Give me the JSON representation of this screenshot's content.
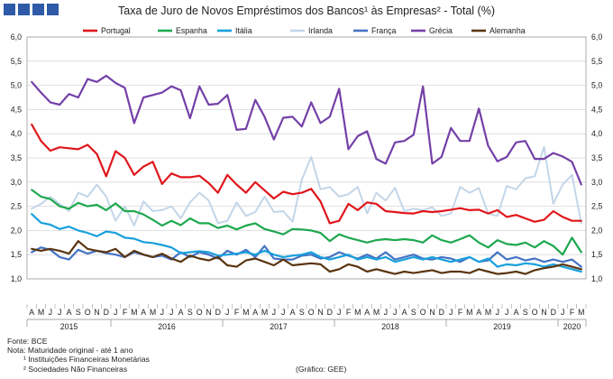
{
  "chart_data": {
    "type": "line",
    "title": "Taxa de Juro de Novos Empréstimos dos Bancos¹ às Empresas² - Total (%)",
    "ylim": [
      1.0,
      6.0
    ],
    "yticks": [
      "1,0",
      "1,5",
      "2,0",
      "2,5",
      "3,0",
      "3,5",
      "4,0",
      "4,5",
      "5,0",
      "5,5",
      "6,0"
    ],
    "grid": true,
    "legend": "top",
    "month_labels": [
      "A",
      "M",
      "J",
      "J",
      "A",
      "S",
      "O",
      "N",
      "D",
      "J",
      "F",
      "M",
      "A",
      "M",
      "J",
      "J",
      "A",
      "S",
      "O",
      "N",
      "D",
      "J",
      "F",
      "M",
      "A",
      "M",
      "J",
      "J",
      "A",
      "S",
      "O",
      "N",
      "D",
      "J",
      "F",
      "M",
      "A",
      "M",
      "J",
      "J",
      "A",
      "S",
      "O",
      "N",
      "D",
      "J",
      "F",
      "M",
      "A",
      "M",
      "J",
      "J",
      "A",
      "S",
      "O",
      "N",
      "D",
      "J",
      "F",
      "M"
    ],
    "x": [
      "2015-04",
      "2015-05",
      "2015-06",
      "2015-07",
      "2015-08",
      "2015-09",
      "2015-10",
      "2015-11",
      "2015-12",
      "2016-01",
      "2016-02",
      "2016-03",
      "2016-04",
      "2016-05",
      "2016-06",
      "2016-07",
      "2016-08",
      "2016-09",
      "2016-10",
      "2016-11",
      "2016-12",
      "2017-01",
      "2017-02",
      "2017-03",
      "2017-04",
      "2017-05",
      "2017-06",
      "2017-07",
      "2017-08",
      "2017-09",
      "2017-10",
      "2017-11",
      "2017-12",
      "2018-01",
      "2018-02",
      "2018-03",
      "2018-04",
      "2018-05",
      "2018-06",
      "2018-07",
      "2018-08",
      "2018-09",
      "2018-10",
      "2018-11",
      "2018-12",
      "2019-01",
      "2019-02",
      "2019-03",
      "2019-04",
      "2019-05",
      "2019-06",
      "2019-07",
      "2019-08",
      "2019-09",
      "2019-10",
      "2019-11",
      "2019-12",
      "2020-01",
      "2020-02",
      "2020-03"
    ],
    "years": [
      {
        "label": "2015",
        "start": 0,
        "end": 8
      },
      {
        "label": "2016",
        "start": 9,
        "end": 20
      },
      {
        "label": "2017",
        "start": 21,
        "end": 32
      },
      {
        "label": "2018",
        "start": 33,
        "end": 44
      },
      {
        "label": "2019",
        "start": 45,
        "end": 56
      },
      {
        "label": "2020",
        "start": 57,
        "end": 59
      }
    ],
    "series": [
      {
        "name": "Portugal",
        "color": "#e0161b",
        "values": [
          4.19,
          3.85,
          3.65,
          3.72,
          3.7,
          3.68,
          3.77,
          3.58,
          3.12,
          3.64,
          3.5,
          3.15,
          3.32,
          3.42,
          2.96,
          3.18,
          3.1,
          3.1,
          3.13,
          2.98,
          2.78,
          3.15,
          2.95,
          2.78,
          3.0,
          2.83,
          2.66,
          2.8,
          2.75,
          2.78,
          2.86,
          2.6,
          2.15,
          2.2,
          2.55,
          2.42,
          2.58,
          2.55,
          2.4,
          2.38,
          2.36,
          2.35,
          2.4,
          2.38,
          2.4,
          2.43,
          2.46,
          2.42,
          2.43,
          2.35,
          2.42,
          2.28,
          2.32,
          2.25,
          2.18,
          2.22,
          2.4,
          2.28,
          2.2,
          2.2
        ]
      },
      {
        "name": "Espanha",
        "color": "#1ea84f",
        "values": [
          2.84,
          2.7,
          2.65,
          2.5,
          2.45,
          2.57,
          2.5,
          2.53,
          2.42,
          2.56,
          2.4,
          2.4,
          2.33,
          2.22,
          2.1,
          2.2,
          2.11,
          2.25,
          2.15,
          2.15,
          2.05,
          2.1,
          2.02,
          2.1,
          2.15,
          2.03,
          1.98,
          1.92,
          2.03,
          2.02,
          2.0,
          1.95,
          1.78,
          1.92,
          1.85,
          1.8,
          1.75,
          1.8,
          1.82,
          1.8,
          1.82,
          1.8,
          1.75,
          1.9,
          1.8,
          1.75,
          1.82,
          1.9,
          1.75,
          1.65,
          1.8,
          1.72,
          1.7,
          1.75,
          1.65,
          1.78,
          1.68,
          1.5,
          1.85,
          1.55
        ]
      },
      {
        "name": "Itália",
        "color": "#19a0dc",
        "values": [
          2.34,
          2.16,
          2.12,
          2.03,
          2.08,
          2.0,
          1.95,
          1.88,
          1.98,
          1.95,
          1.85,
          1.83,
          1.76,
          1.74,
          1.7,
          1.65,
          1.53,
          1.55,
          1.57,
          1.55,
          1.48,
          1.5,
          1.52,
          1.55,
          1.5,
          1.58,
          1.5,
          1.45,
          1.48,
          1.5,
          1.55,
          1.45,
          1.4,
          1.45,
          1.5,
          1.4,
          1.45,
          1.4,
          1.45,
          1.35,
          1.4,
          1.45,
          1.4,
          1.45,
          1.4,
          1.35,
          1.4,
          1.45,
          1.35,
          1.42,
          1.25,
          1.3,
          1.28,
          1.32,
          1.3,
          1.25,
          1.3,
          1.25,
          1.2,
          1.15
        ]
      },
      {
        "name": "Irlanda",
        "color": "#c3d6e8",
        "values": [
          2.45,
          2.55,
          2.7,
          2.55,
          2.4,
          2.78,
          2.7,
          2.95,
          2.7,
          2.2,
          2.5,
          2.1,
          2.6,
          2.4,
          2.42,
          2.5,
          2.25,
          2.58,
          2.78,
          2.62,
          2.15,
          2.2,
          2.58,
          2.3,
          2.38,
          2.7,
          2.38,
          2.4,
          2.18,
          3.05,
          3.52,
          2.85,
          2.9,
          2.7,
          2.75,
          2.9,
          2.35,
          2.78,
          2.62,
          2.88,
          2.4,
          2.45,
          2.42,
          2.48,
          2.3,
          2.35,
          2.9,
          2.78,
          2.88,
          2.35,
          2.3,
          2.92,
          2.85,
          3.08,
          3.12,
          3.73,
          2.55,
          2.95,
          3.15,
          2.15
        ]
      },
      {
        "name": "França",
        "color": "#4472c4",
        "values": [
          1.55,
          1.65,
          1.6,
          1.45,
          1.4,
          1.6,
          1.52,
          1.58,
          1.53,
          1.5,
          1.45,
          1.55,
          1.5,
          1.45,
          1.48,
          1.4,
          1.55,
          1.45,
          1.55,
          1.5,
          1.42,
          1.58,
          1.5,
          1.6,
          1.45,
          1.68,
          1.42,
          1.4,
          1.4,
          1.48,
          1.5,
          1.42,
          1.45,
          1.55,
          1.48,
          1.42,
          1.5,
          1.42,
          1.55,
          1.4,
          1.45,
          1.5,
          1.42,
          1.4,
          1.45,
          1.42,
          1.35,
          1.45,
          1.35,
          1.38,
          1.55,
          1.4,
          1.45,
          1.38,
          1.42,
          1.35,
          1.4,
          1.35,
          1.4,
          1.25
        ]
      },
      {
        "name": "Grécia",
        "color": "#7440a8",
        "values": [
          5.07,
          4.85,
          4.65,
          4.6,
          4.82,
          4.75,
          5.13,
          5.07,
          5.2,
          5.05,
          4.95,
          4.22,
          4.75,
          4.8,
          4.85,
          4.98,
          4.9,
          4.32,
          4.98,
          4.6,
          4.62,
          4.8,
          4.08,
          4.1,
          4.7,
          4.35,
          3.88,
          4.33,
          4.35,
          4.15,
          4.65,
          4.22,
          4.35,
          4.93,
          3.68,
          3.95,
          4.05,
          3.48,
          3.38,
          3.82,
          3.85,
          3.98,
          4.98,
          3.38,
          3.52,
          4.12,
          3.85,
          3.85,
          4.52,
          3.75,
          3.43,
          3.52,
          3.82,
          3.85,
          3.48,
          3.48,
          3.6,
          3.53,
          3.42,
          2.95
        ]
      },
      {
        "name": "Alemanha",
        "color": "#5a3510",
        "values": [
          1.62,
          1.58,
          1.62,
          1.58,
          1.52,
          1.78,
          1.62,
          1.58,
          1.55,
          1.62,
          1.45,
          1.58,
          1.5,
          1.45,
          1.52,
          1.42,
          1.35,
          1.48,
          1.42,
          1.38,
          1.45,
          1.28,
          1.25,
          1.38,
          1.42,
          1.35,
          1.28,
          1.4,
          1.28,
          1.3,
          1.32,
          1.3,
          1.15,
          1.2,
          1.3,
          1.25,
          1.15,
          1.2,
          1.15,
          1.1,
          1.15,
          1.12,
          1.15,
          1.18,
          1.12,
          1.15,
          1.15,
          1.12,
          1.2,
          1.15,
          1.1,
          1.12,
          1.15,
          1.1,
          1.18,
          1.22,
          1.25,
          1.3,
          1.25,
          1.2
        ]
      }
    ]
  },
  "footer": {
    "fonte": "Fonte: BCE",
    "nota": "Nota: Maturidade original - até 1 ano",
    "nota1": "¹ Instituições Financeiras Monetárias",
    "nota2": "² Sociedades Não Financeiras",
    "credit": "(Gráfico: GEE)"
  }
}
